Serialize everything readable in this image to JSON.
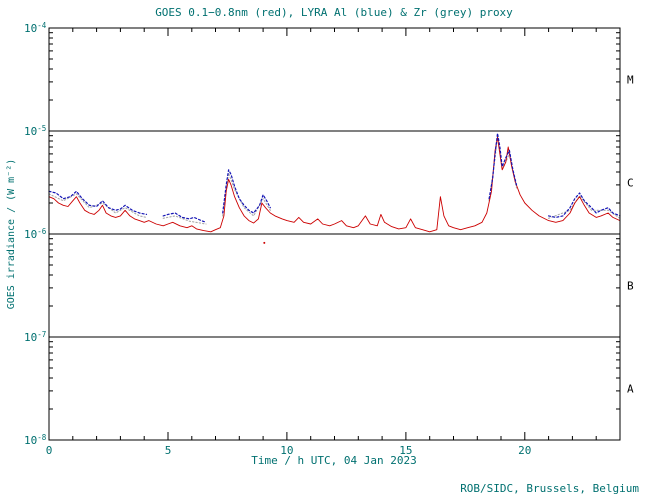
{
  "chart_data": {
    "type": "line",
    "title": "GOES 0.1−0.8nm (red), LYRA Al (blue) & Zr (grey) proxy",
    "xlabel": "Time / h UTC, 04 Jan 2023",
    "ylabel": "GOES irradiance / (W m⁻²)",
    "credit": "ROB/SIDC, Brussels, Belgium",
    "x_range": [
      0,
      24
    ],
    "x_major_ticks": [
      0,
      5,
      10,
      15,
      20
    ],
    "x_minor_step": 1,
    "y_log_range": [
      -8,
      -4
    ],
    "y_tick_exponents": [
      -4,
      -5,
      -6,
      -7,
      -8
    ],
    "threshold_lines_log10": [
      -5,
      -6,
      -7
    ],
    "flare_classes": [
      {
        "label": "M",
        "band": [
          -5,
          -4
        ]
      },
      {
        "label": "C",
        "band": [
          -6,
          -5
        ]
      },
      {
        "label": "B",
        "band": [
          -7,
          -6
        ]
      },
      {
        "label": "A",
        "band": [
          -8,
          -7
        ]
      }
    ],
    "legend_position": "title",
    "grid": "off",
    "colors": {
      "text": "#007070",
      "axis": "#000000",
      "goes_red": "#cc0000",
      "lyra_al_blue": "#1515b5",
      "lyra_zr_grey": "#a8a8a8",
      "background": "#ffffff"
    },
    "series": [
      {
        "name": "LYRA Zr proxy",
        "color_key": "lyra_zr_grey",
        "style": "dotted",
        "segments": [
          [
            [
              0,
              2.45e-06
            ],
            [
              0.6,
              2.1e-06
            ],
            [
              1.15,
              2.45e-06
            ],
            [
              1.7,
              1.8e-06
            ],
            [
              2.25,
              2e-06
            ],
            [
              2.8,
              1.6e-06
            ],
            [
              3.2,
              1.8e-06
            ],
            [
              3.8,
              1.5e-06
            ],
            [
              4.1,
              1.45e-06
            ]
          ],
          [
            [
              4.8,
              1.42e-06
            ],
            [
              5.3,
              1.5e-06
            ],
            [
              5.9,
              1.33e-06
            ],
            [
              6.6,
              1.25e-06
            ]
          ],
          [
            [
              7.3,
              1.5e-06
            ],
            [
              7.55,
              3.9e-06
            ],
            [
              7.8,
              2.7e-06
            ],
            [
              8.2,
              1.8e-06
            ],
            [
              8.6,
              1.5e-06
            ],
            [
              9.0,
              2.2e-06
            ],
            [
              9.3,
              1.7e-06
            ]
          ],
          [
            [
              18.5,
              2.1e-06
            ],
            [
              18.75,
              5.5e-06
            ],
            [
              18.85,
              8.8e-06
            ],
            [
              19.05,
              4.2e-06
            ],
            [
              19.35,
              6e-06
            ],
            [
              19.65,
              2.8e-06
            ]
          ],
          [
            [
              21.0,
              1.42e-06
            ],
            [
              21.9,
              1.7e-06
            ],
            [
              22.3,
              2.35e-06
            ],
            [
              22.8,
              1.7e-06
            ],
            [
              23.5,
              1.7e-06
            ],
            [
              24.0,
              1.42e-06
            ]
          ]
        ]
      },
      {
        "name": "GOES 0.1-0.8nm",
        "color_key": "goes_red",
        "style": "solid",
        "segments": [
          [
            [
              0,
              2.3e-06
            ],
            [
              0.2,
              2.2e-06
            ],
            [
              0.4,
              2e-06
            ],
            [
              0.6,
              1.9e-06
            ],
            [
              0.8,
              1.85e-06
            ],
            [
              1.0,
              2.1e-06
            ],
            [
              1.15,
              2.3e-06
            ],
            [
              1.3,
              2e-06
            ],
            [
              1.5,
              1.7e-06
            ],
            [
              1.7,
              1.6e-06
            ],
            [
              1.9,
              1.55e-06
            ],
            [
              2.1,
              1.7e-06
            ],
            [
              2.25,
              1.9e-06
            ],
            [
              2.4,
              1.6e-06
            ],
            [
              2.6,
              1.5e-06
            ],
            [
              2.8,
              1.45e-06
            ],
            [
              3.0,
              1.5e-06
            ],
            [
              3.2,
              1.7e-06
            ],
            [
              3.4,
              1.5e-06
            ],
            [
              3.6,
              1.4e-06
            ],
            [
              3.8,
              1.35e-06
            ],
            [
              4.0,
              1.3e-06
            ],
            [
              4.2,
              1.35e-06
            ],
            [
              4.5,
              1.25e-06
            ],
            [
              4.8,
              1.2e-06
            ],
            [
              5.0,
              1.25e-06
            ],
            [
              5.2,
              1.3e-06
            ],
            [
              5.5,
              1.2e-06
            ],
            [
              5.8,
              1.15e-06
            ],
            [
              6.0,
              1.2e-06
            ],
            [
              6.2,
              1.12e-06
            ],
            [
              6.5,
              1.08e-06
            ],
            [
              6.8,
              1.05e-06
            ],
            [
              7.0,
              1.1e-06
            ],
            [
              7.2,
              1.15e-06
            ],
            [
              7.35,
              1.5e-06
            ],
            [
              7.45,
              2.6e-06
            ],
            [
              7.55,
              3.4e-06
            ],
            [
              7.65,
              3e-06
            ],
            [
              7.8,
              2.3e-06
            ],
            [
              8.0,
              1.8e-06
            ],
            [
              8.2,
              1.5e-06
            ],
            [
              8.4,
              1.35e-06
            ],
            [
              8.6,
              1.28e-06
            ],
            [
              8.8,
              1.4e-06
            ],
            [
              8.95,
              2e-06
            ],
            [
              9.1,
              1.8e-06
            ],
            [
              9.3,
              1.6e-06
            ],
            [
              9.5,
              1.5e-06
            ],
            [
              9.8,
              1.4e-06
            ],
            [
              10.0,
              1.35e-06
            ],
            [
              10.3,
              1.3e-06
            ],
            [
              10.5,
              1.45e-06
            ],
            [
              10.7,
              1.3e-06
            ],
            [
              11.0,
              1.25e-06
            ],
            [
              11.3,
              1.4e-06
            ],
            [
              11.5,
              1.25e-06
            ],
            [
              11.8,
              1.2e-06
            ],
            [
              12.0,
              1.25e-06
            ],
            [
              12.3,
              1.35e-06
            ],
            [
              12.5,
              1.2e-06
            ],
            [
              12.8,
              1.15e-06
            ],
            [
              13.0,
              1.2e-06
            ],
            [
              13.3,
              1.5e-06
            ],
            [
              13.5,
              1.25e-06
            ],
            [
              13.8,
              1.2e-06
            ],
            [
              13.95,
              1.55e-06
            ],
            [
              14.1,
              1.3e-06
            ],
            [
              14.4,
              1.18e-06
            ],
            [
              14.7,
              1.12e-06
            ],
            [
              15.0,
              1.15e-06
            ],
            [
              15.2,
              1.4e-06
            ],
            [
              15.4,
              1.15e-06
            ],
            [
              15.7,
              1.1e-06
            ],
            [
              16.0,
              1.05e-06
            ],
            [
              16.3,
              1.1e-06
            ],
            [
              16.45,
              2.3e-06
            ],
            [
              16.6,
              1.5e-06
            ],
            [
              16.8,
              1.2e-06
            ],
            [
              17.0,
              1.15e-06
            ],
            [
              17.3,
              1.1e-06
            ],
            [
              17.6,
              1.15e-06
            ],
            [
              17.9,
              1.2e-06
            ],
            [
              18.2,
              1.3e-06
            ],
            [
              18.4,
              1.6e-06
            ],
            [
              18.6,
              2.6e-06
            ],
            [
              18.75,
              6.5e-06
            ],
            [
              18.85,
              8.7e-06
            ],
            [
              18.95,
              6e-06
            ],
            [
              19.05,
              4.2e-06
            ],
            [
              19.2,
              5e-06
            ],
            [
              19.3,
              7e-06
            ],
            [
              19.45,
              4.5e-06
            ],
            [
              19.6,
              3.2e-06
            ],
            [
              19.8,
              2.4e-06
            ],
            [
              20.0,
              2e-06
            ],
            [
              20.3,
              1.7e-06
            ],
            [
              20.6,
              1.5e-06
            ],
            [
              21.0,
              1.35e-06
            ],
            [
              21.3,
              1.3e-06
            ],
            [
              21.6,
              1.35e-06
            ],
            [
              21.9,
              1.6e-06
            ],
            [
              22.1,
              2e-06
            ],
            [
              22.3,
              2.3e-06
            ],
            [
              22.5,
              1.9e-06
            ],
            [
              22.7,
              1.6e-06
            ],
            [
              23.0,
              1.45e-06
            ],
            [
              23.2,
              1.5e-06
            ],
            [
              23.5,
              1.6e-06
            ],
            [
              23.7,
              1.45e-06
            ],
            [
              24.0,
              1.35e-06
            ]
          ]
        ],
        "isolated_points": [
          [
            9.05,
            8.2e-07
          ]
        ]
      },
      {
        "name": "LYRA Al",
        "color_key": "lyra_al_blue",
        "style": "dashed",
        "segments": [
          [
            [
              0,
              2.6e-06
            ],
            [
              0.3,
              2.5e-06
            ],
            [
              0.6,
              2.2e-06
            ],
            [
              0.9,
              2.3e-06
            ],
            [
              1.15,
              2.6e-06
            ],
            [
              1.4,
              2.2e-06
            ],
            [
              1.7,
              1.9e-06
            ],
            [
              2.0,
              1.85e-06
            ],
            [
              2.25,
              2.1e-06
            ],
            [
              2.5,
              1.8e-06
            ],
            [
              2.8,
              1.7e-06
            ],
            [
              3.0,
              1.75e-06
            ],
            [
              3.2,
              1.9e-06
            ],
            [
              3.5,
              1.7e-06
            ],
            [
              3.8,
              1.6e-06
            ],
            [
              4.1,
              1.55e-06
            ]
          ],
          [
            [
              4.8,
              1.5e-06
            ],
            [
              5.0,
              1.55e-06
            ],
            [
              5.3,
              1.6e-06
            ],
            [
              5.6,
              1.45e-06
            ],
            [
              5.9,
              1.4e-06
            ],
            [
              6.1,
              1.45e-06
            ],
            [
              6.4,
              1.35e-06
            ],
            [
              6.6,
              1.3e-06
            ]
          ],
          [
            [
              7.3,
              1.6e-06
            ],
            [
              7.45,
              3e-06
            ],
            [
              7.55,
              4.2e-06
            ],
            [
              7.65,
              3.8e-06
            ],
            [
              7.8,
              2.9e-06
            ],
            [
              8.0,
              2.2e-06
            ],
            [
              8.2,
              1.9e-06
            ],
            [
              8.4,
              1.7e-06
            ],
            [
              8.6,
              1.6e-06
            ],
            [
              8.85,
              1.9e-06
            ],
            [
              9.0,
              2.4e-06
            ],
            [
              9.15,
              2.1e-06
            ],
            [
              9.3,
              1.8e-06
            ]
          ],
          [
            [
              18.5,
              2.2e-06
            ],
            [
              18.65,
              3.5e-06
            ],
            [
              18.75,
              6e-06
            ],
            [
              18.85,
              9.5e-06
            ],
            [
              18.95,
              7e-06
            ],
            [
              19.05,
              4.5e-06
            ],
            [
              19.2,
              5.5e-06
            ],
            [
              19.35,
              6.5e-06
            ],
            [
              19.5,
              4.2e-06
            ],
            [
              19.65,
              3e-06
            ]
          ],
          [
            [
              21.0,
              1.5e-06
            ],
            [
              21.3,
              1.45e-06
            ],
            [
              21.6,
              1.5e-06
            ],
            [
              21.9,
              1.8e-06
            ],
            [
              22.1,
              2.2e-06
            ],
            [
              22.3,
              2.5e-06
            ],
            [
              22.5,
              2.1e-06
            ],
            [
              22.8,
              1.8e-06
            ],
            [
              23.0,
              1.6e-06
            ],
            [
              23.2,
              1.7e-06
            ],
            [
              23.5,
              1.8e-06
            ],
            [
              23.7,
              1.6e-06
            ],
            [
              24.0,
              1.5e-06
            ]
          ]
        ]
      }
    ]
  }
}
